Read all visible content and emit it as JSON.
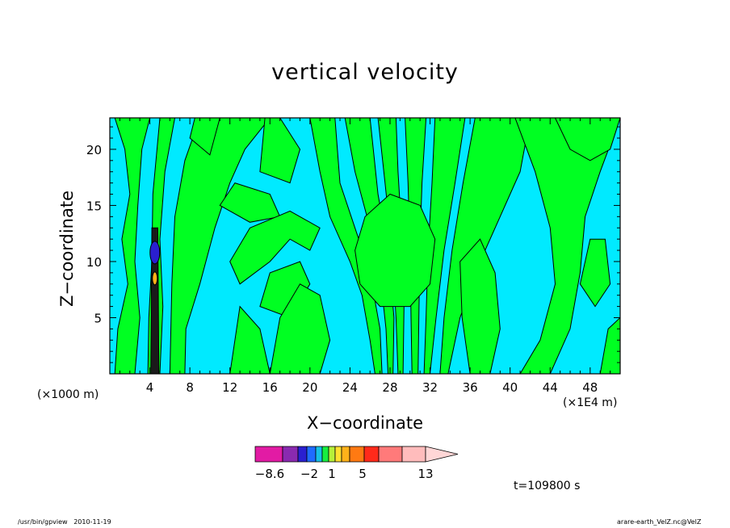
{
  "chart_data": {
    "type": "heatmap",
    "title": "vertical velocity",
    "xlabel": "X−coordinate",
    "ylabel": "Z−coordinate",
    "x_unit_note": "(×1000 m)",
    "x_scale_note": "(×1E4 m)",
    "x_ticks": [
      4,
      8,
      12,
      16,
      20,
      24,
      28,
      32,
      36,
      40,
      44,
      48
    ],
    "y_ticks": [
      5,
      10,
      15,
      20
    ],
    "xlim": [
      0,
      51
    ],
    "ylim": [
      0,
      22.8
    ],
    "fields": [
      {
        "level": "positive (green)",
        "x": [
          0.5,
          51
        ],
        "z": [
          0,
          22.8
        ]
      },
      {
        "level": "negative (cyan)",
        "x": [
          0,
          51
        ],
        "z": [
          0,
          22.8
        ]
      }
    ],
    "colorbar": {
      "tick_labels": [
        "−8.6",
        "−2",
        "1",
        "5",
        "13"
      ],
      "colors": [
        "#e21ba4",
        "#8a2ab0",
        "#2a1fd0",
        "#1f6bff",
        "#16c0e8",
        "#16ee40",
        "#b8f03a",
        "#ffe030",
        "#ffb21a",
        "#ff7a12",
        "#ff2a1a",
        "#ff7a7a",
        "#ffbcbc",
        "#ffd6d6"
      ],
      "legend_placement": "bottom"
    },
    "time_label": "t=109800 s"
  },
  "footer": {
    "left": "/usr/bin/gpview   2010-11-19",
    "right": "arare-earth_VelZ.nc@VelZ"
  }
}
